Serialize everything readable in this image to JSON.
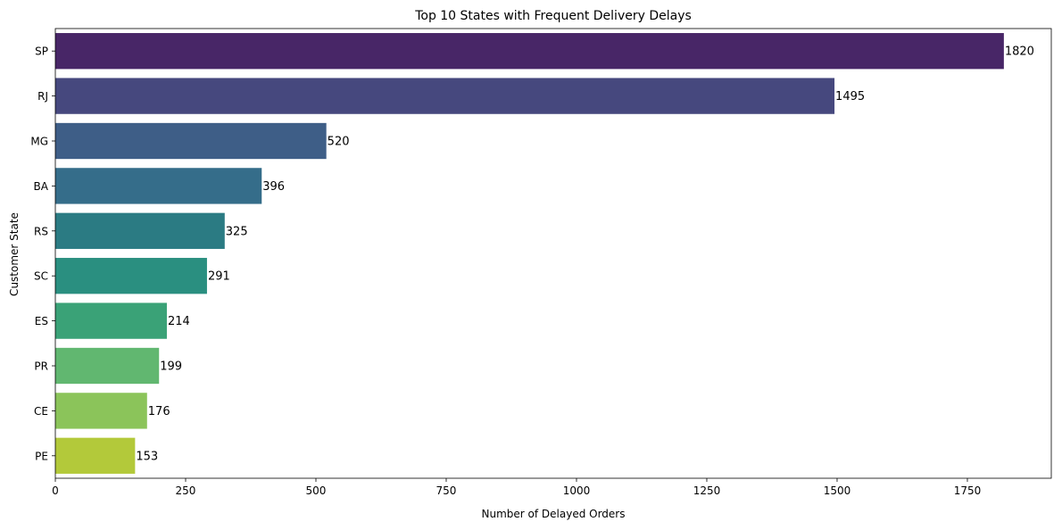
{
  "chart_data": {
    "type": "bar",
    "orientation": "horizontal",
    "title": "Top 10 States with Frequent Delivery Delays",
    "xlabel": "Number of Delayed Orders",
    "ylabel": "Customer State",
    "categories": [
      "SP",
      "RJ",
      "MG",
      "BA",
      "RS",
      "SC",
      "ES",
      "PR",
      "CE",
      "PE"
    ],
    "values": [
      1820,
      1495,
      520,
      396,
      325,
      291,
      214,
      199,
      176,
      153
    ],
    "colors": [
      "#482667",
      "#46487e",
      "#3e5e87",
      "#356d8a",
      "#2b7b83",
      "#2a8f80",
      "#3aa277",
      "#61b770",
      "#8bc45a",
      "#b3c93a"
    ],
    "xlim": [
      0,
      1911
    ],
    "xticks": [
      0,
      250,
      500,
      750,
      1000,
      1250,
      1500,
      1750
    ],
    "data_labels": true,
    "grid": false,
    "legend": "none"
  }
}
